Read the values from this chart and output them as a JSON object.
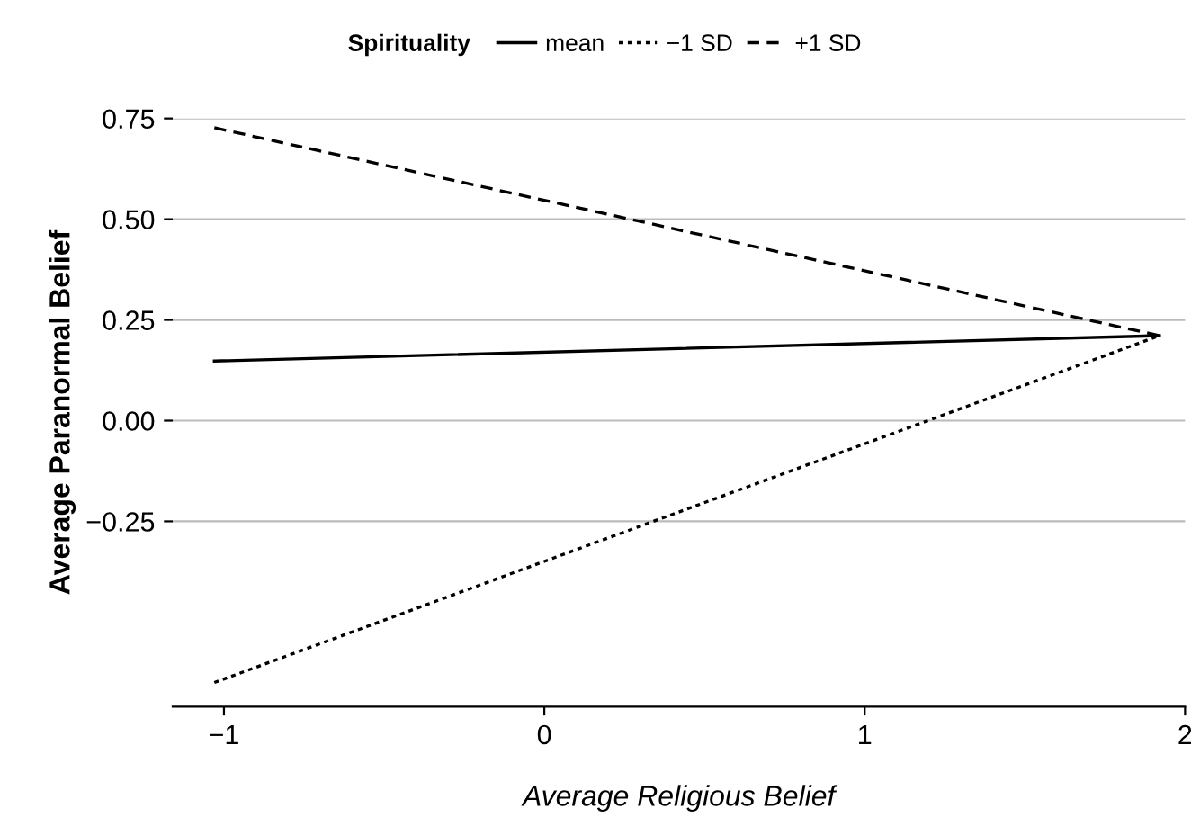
{
  "chart_data": {
    "type": "line",
    "xlabel": "Average Religious Belief",
    "ylabel": "Average Paranormal Belief",
    "legend_title": "Spirituality",
    "xlim": [
      -1.16,
      2.0
    ],
    "ylim": [
      -0.71,
      0.75
    ],
    "xticks": [
      {
        "value": -1,
        "label": "−1"
      },
      0,
      1,
      2
    ],
    "yticks": [
      {
        "value": -0.25,
        "label": "−0.25"
      },
      {
        "value": 0,
        "label": "0.00"
      },
      {
        "value": 0.25,
        "label": "0.25"
      },
      {
        "value": 0.5,
        "label": "0.50"
      },
      {
        "value": 0.75,
        "label": "0.75"
      }
    ],
    "grid": "y",
    "legend": "top",
    "marker": "none",
    "x": [
      -1.03,
      1.92
    ],
    "series": [
      {
        "name": "mean",
        "color": "#000000",
        "line_style": "solid",
        "values": [
          0.148,
          0.211
        ]
      },
      {
        "name": "−1 SD",
        "color": "#000000",
        "line_style": "dotted",
        "values": [
          -0.65,
          0.211
        ]
      },
      {
        "name": "+1 SD",
        "color": "#000000",
        "line_style": "dashed",
        "values": [
          0.727,
          0.211
        ]
      }
    ]
  }
}
